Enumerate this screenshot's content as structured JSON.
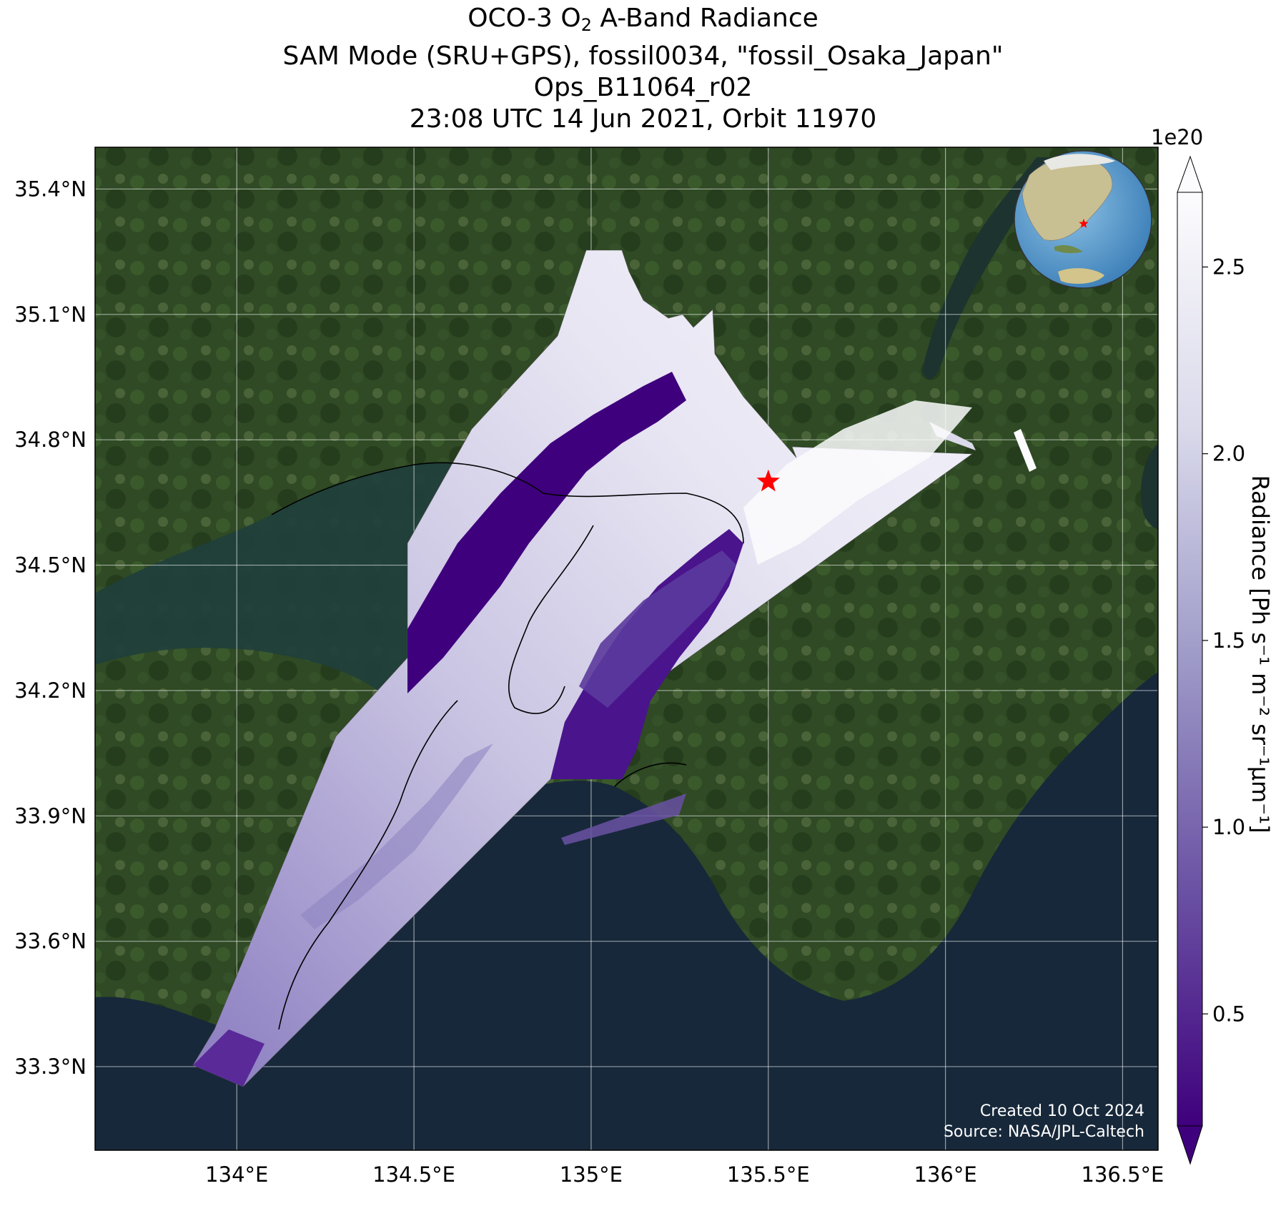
{
  "title": {
    "line1_prefix": "OCO-3 O",
    "line1_sub": "2",
    "line1_suffix": " A-Band Radiance",
    "line2": "SAM Mode (SRU+GPS), fossil0034, \"fossil_Osaka_Japan\"",
    "line3": "Ops_B11064_r02",
    "line4": "23:08 UTC 14 Jun 2021, Orbit 11970"
  },
  "map": {
    "lon_range": [
      133.6,
      136.6
    ],
    "lat_range": [
      33.1,
      35.5
    ],
    "lon_ticks": [
      {
        "value": 134.0,
        "label": "134°E"
      },
      {
        "value": 134.5,
        "label": "134.5°E"
      },
      {
        "value": 135.0,
        "label": "135°E"
      },
      {
        "value": 135.5,
        "label": "135.5°E"
      },
      {
        "value": 136.0,
        "label": "136°E"
      },
      {
        "value": 136.5,
        "label": "136.5°E"
      }
    ],
    "lat_ticks": [
      {
        "value": 35.4,
        "label": "35.4°N"
      },
      {
        "value": 35.1,
        "label": "35.1°N"
      },
      {
        "value": 34.8,
        "label": "34.8°N"
      },
      {
        "value": 34.5,
        "label": "34.5°N"
      },
      {
        "value": 34.2,
        "label": "34.2°N"
      },
      {
        "value": 33.9,
        "label": "33.9°N"
      },
      {
        "value": 33.6,
        "label": "33.6°N"
      },
      {
        "value": 33.3,
        "label": "33.3°N"
      }
    ],
    "gridlines": true,
    "target_marker": {
      "lon": 135.5,
      "lat": 34.7,
      "color": "#ff0000",
      "shape": "star"
    },
    "basemap": "satellite imagery",
    "swath_colormap": "Purples_r"
  },
  "colorbar": {
    "label": "Radiance [Ph s⁻¹ m⁻² sr⁻¹μm⁻¹]",
    "exponent": "1e20",
    "range": [
      0.2,
      2.7
    ],
    "ticks": [
      {
        "value": 0.5,
        "label": "0.5"
      },
      {
        "value": 1.0,
        "label": "1.0"
      },
      {
        "value": 1.5,
        "label": "1.5"
      },
      {
        "value": 2.0,
        "label": "2.0"
      },
      {
        "value": 2.5,
        "label": "2.5"
      }
    ],
    "extend": "both",
    "color_low": "#3f007d",
    "color_high": "#fcfbfd"
  },
  "credits": {
    "created": "Created 10 Oct 2024",
    "source": "Source: NASA/JPL-Caltech"
  },
  "inset_globe": {
    "marker_color": "#ff0000",
    "focus": "Japan"
  }
}
